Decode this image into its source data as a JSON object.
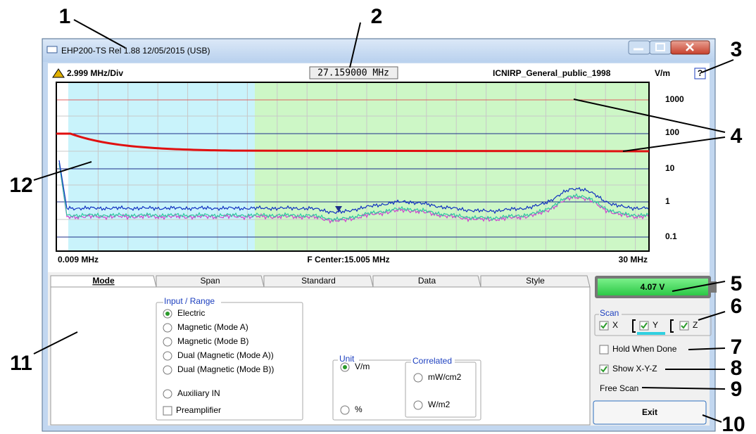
{
  "callouts": [
    "1",
    "2",
    "3",
    "4",
    "5",
    "6",
    "7",
    "8",
    "9",
    "10",
    "11",
    "12"
  ],
  "window": {
    "title": "EHP200-TS Rel 1.88 12/05/2015 (USB)"
  },
  "chart": {
    "div": "2.999 MHz/Div",
    "frequency": "27.159000 MHz",
    "standard": "ICNIRP_General_public_1998",
    "unit": "V/m",
    "help": "?",
    "y_labels": [
      "1000",
      "100",
      "10",
      "1",
      "0.1"
    ],
    "x_start": "0.009 MHz",
    "x_center": "F Center:15.005 MHz",
    "x_end": "30 MHz"
  },
  "tabs": [
    "Mode",
    "Span",
    "Standard",
    "Data",
    "Style"
  ],
  "input_range": {
    "title": "Input / Range",
    "options": [
      "Electric",
      "Magnetic (Mode A)",
      "Magnetic (Mode B)",
      "Dual (Magnetic (Mode A))",
      "Dual (Magnetic (Mode B))",
      "Auxiliary IN"
    ],
    "preamplifier": "Preamplifier"
  },
  "unit": {
    "title": "Unit",
    "options": [
      "V/m",
      "%"
    ],
    "correlated": {
      "title": "Correlated",
      "options": [
        "mW/cm2",
        "W/m2"
      ]
    }
  },
  "side": {
    "battery": "4.07 V",
    "scan": {
      "title": "Scan",
      "axes": [
        "X",
        "Y",
        "Z"
      ]
    },
    "hold": "Hold When Done",
    "show_xyz": "Show X-Y-Z",
    "status": "Free Scan",
    "exit": "Exit"
  }
}
